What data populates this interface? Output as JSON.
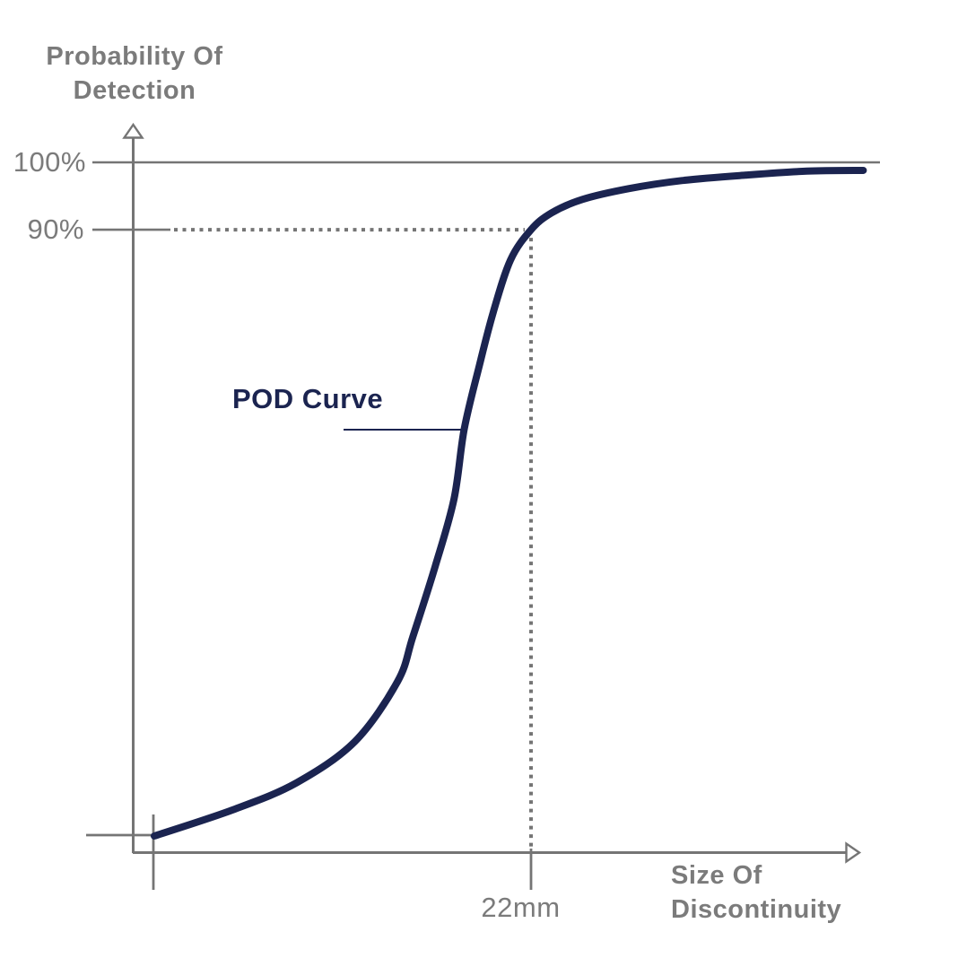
{
  "colors": {
    "curve_navy": "#1b2450",
    "line_gray": "#757575",
    "text_gray": "#7b7b7b",
    "background": "#ffffff"
  },
  "labels": {
    "y_axis_title_line1": "Probability Of",
    "y_axis_title_line2": "Detection",
    "x_axis_title_line1": "Size Of",
    "x_axis_title_line2": "Discontinuity"
  },
  "chart_data": {
    "type": "line",
    "ylabel": "Probability Of Detection",
    "xlabel": "Size Of Discontinuity",
    "x_unit": "mm",
    "xlim": [
      0,
      42
    ],
    "ylim": [
      0,
      1
    ],
    "grid": false,
    "legend": "inline-label-with-leader-line",
    "series": [
      {
        "name": "POD Curve",
        "color": "#1b2450",
        "points": [
          [
            0,
            0.0
          ],
          [
            4.6,
            0.039
          ],
          [
            8.3,
            0.079
          ],
          [
            11.7,
            0.14
          ],
          [
            14.2,
            0.229
          ],
          [
            15.1,
            0.296
          ],
          [
            16.4,
            0.4
          ],
          [
            17.5,
            0.5
          ],
          [
            18.1,
            0.604
          ],
          [
            19.0,
            0.7
          ],
          [
            19.8,
            0.778
          ],
          [
            20.8,
            0.855
          ],
          [
            22,
            0.9
          ],
          [
            23.2,
            0.925
          ],
          [
            25,
            0.945
          ],
          [
            27.7,
            0.961
          ],
          [
            30.8,
            0.973
          ],
          [
            34.5,
            0.981
          ],
          [
            38.1,
            0.987
          ],
          [
            41.4,
            0.988
          ]
        ]
      }
    ],
    "annotations": {
      "y_ticks": [
        {
          "label": "100%",
          "value": 1.0
        },
        {
          "label": "90%",
          "value": 0.9
        }
      ],
      "x_ticks": [
        {
          "label": "22mm",
          "value": 22
        }
      ],
      "reference_point": {
        "x_mm": 22,
        "pod": 0.9,
        "style": "dotted"
      }
    }
  }
}
